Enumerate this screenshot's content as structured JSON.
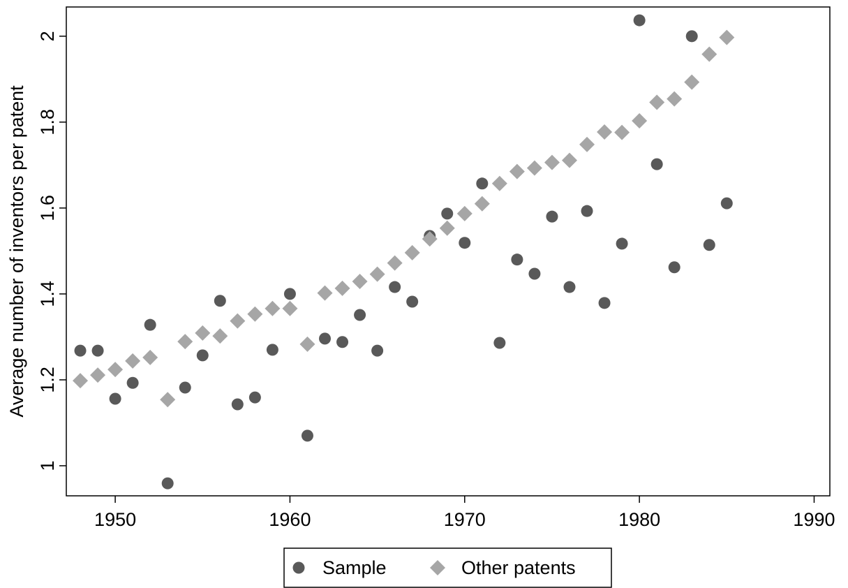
{
  "chart_data": {
    "type": "scatter",
    "ylabel": "Average number of inventors per patent",
    "x": [
      1948,
      1949,
      1950,
      1951,
      1952,
      1953,
      1954,
      1955,
      1956,
      1957,
      1958,
      1959,
      1960,
      1961,
      1962,
      1963,
      1964,
      1965,
      1966,
      1967,
      1968,
      1969,
      1970,
      1971,
      1972,
      1973,
      1974,
      1975,
      1976,
      1977,
      1978,
      1979,
      1980,
      1981,
      1982,
      1983,
      1984,
      1985
    ],
    "series": [
      {
        "name": "Sample",
        "color": "#595959",
        "marker": "circle",
        "values": [
          1.268,
          1.268,
          1.156,
          1.193,
          1.328,
          0.959,
          1.182,
          1.257,
          1.384,
          1.143,
          1.159,
          1.27,
          1.4,
          1.07,
          1.296,
          1.288,
          1.351,
          1.268,
          1.416,
          1.382,
          1.535,
          1.587,
          1.519,
          1.657,
          1.286,
          1.48,
          1.447,
          1.58,
          1.416,
          1.593,
          1.379,
          1.517,
          2.037,
          1.702,
          1.462,
          2.0,
          1.514,
          1.611
        ]
      },
      {
        "name": "Other patents",
        "color": "#a6a6a6",
        "marker": "diamond",
        "values": [
          1.198,
          1.211,
          1.224,
          1.244,
          1.252,
          1.154,
          1.289,
          1.309,
          1.302,
          1.337,
          1.353,
          1.366,
          1.366,
          1.283,
          1.402,
          1.413,
          1.429,
          1.446,
          1.472,
          1.496,
          1.528,
          1.553,
          1.587,
          1.61,
          1.657,
          1.685,
          1.693,
          1.706,
          1.711,
          1.748,
          1.777,
          1.776,
          1.803,
          1.846,
          1.854,
          1.893,
          1.958,
          1.997
        ]
      }
    ],
    "xlim": [
      1947.2,
      1990.9
    ],
    "xticks": [
      1950,
      1960,
      1970,
      1980,
      1990
    ],
    "ylim": [
      0.93,
      2.068
    ],
    "yticks": [
      1,
      1.2,
      1.4,
      1.6,
      1.8,
      2
    ],
    "legend": "bottom"
  }
}
